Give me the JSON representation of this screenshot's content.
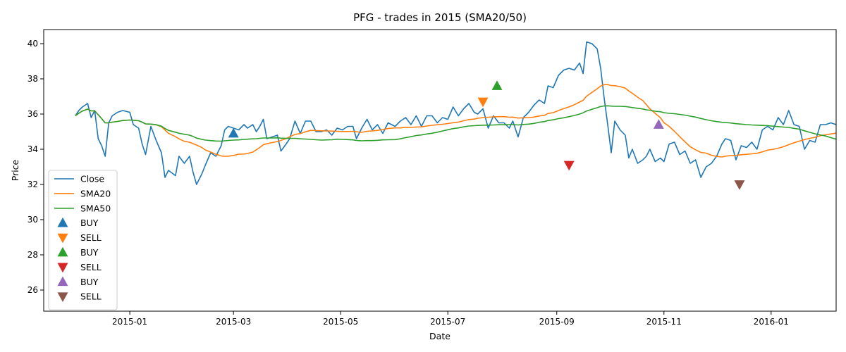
{
  "chart_data": {
    "type": "line",
    "title": "PFG - trades in 2015 (SMA20/50)",
    "xlabel": "Date",
    "ylabel": "Price",
    "xlim": [
      "2014-11-13",
      "2016-02-07"
    ],
    "ylim": [
      24.8,
      40.8
    ],
    "xticks": [
      {
        "date": "2015-01-01",
        "label": "2015-01"
      },
      {
        "date": "2015-03-01",
        "label": "2015-03"
      },
      {
        "date": "2015-05-01",
        "label": "2015-05"
      },
      {
        "date": "2015-07-01",
        "label": "2015-07"
      },
      {
        "date": "2015-09-01",
        "label": "2015-09"
      },
      {
        "date": "2015-11-01",
        "label": "2015-11"
      },
      {
        "date": "2016-01-01",
        "label": "2016-01"
      }
    ],
    "yticks": [
      26,
      28,
      30,
      32,
      34,
      36,
      38,
      40
    ],
    "grid": false,
    "legend_position": "lower-left",
    "series": [
      {
        "name": "Close",
        "color": "#1f77b4",
        "points": [
          [
            "2014-12-01",
            35.9
          ],
          [
            "2014-12-03",
            36.2
          ],
          [
            "2014-12-05",
            36.4
          ],
          [
            "2014-12-08",
            36.6
          ],
          [
            "2014-12-10",
            35.8
          ],
          [
            "2014-12-12",
            36.2
          ],
          [
            "2014-12-14",
            34.6
          ],
          [
            "2014-12-16",
            34.2
          ],
          [
            "2014-12-18",
            33.6
          ],
          [
            "2014-12-20",
            35.5
          ],
          [
            "2014-12-22",
            35.9
          ],
          [
            "2014-12-25",
            36.1
          ],
          [
            "2014-12-28",
            36.2
          ],
          [
            "2015-01-01",
            36.1
          ],
          [
            "2015-01-03",
            35.4
          ],
          [
            "2015-01-06",
            35.2
          ],
          [
            "2015-01-08",
            34.3
          ],
          [
            "2015-01-10",
            33.7
          ],
          [
            "2015-01-13",
            35.3
          ],
          [
            "2015-01-16",
            34.5
          ],
          [
            "2015-01-19",
            33.8
          ],
          [
            "2015-01-21",
            32.4
          ],
          [
            "2015-01-23",
            32.8
          ],
          [
            "2015-01-27",
            32.5
          ],
          [
            "2015-01-29",
            33.6
          ],
          [
            "2015-02-01",
            33.2
          ],
          [
            "2015-02-04",
            33.6
          ],
          [
            "2015-02-06",
            32.7
          ],
          [
            "2015-02-08",
            32.0
          ],
          [
            "2015-02-11",
            32.6
          ],
          [
            "2015-02-13",
            33.1
          ],
          [
            "2015-02-16",
            33.8
          ],
          [
            "2015-02-19",
            33.6
          ],
          [
            "2015-02-22",
            34.2
          ],
          [
            "2015-02-24",
            35.1
          ],
          [
            "2015-02-26",
            35.3
          ],
          [
            "2015-03-01",
            35.2
          ],
          [
            "2015-03-04",
            35.1
          ],
          [
            "2015-03-07",
            35.4
          ],
          [
            "2015-03-09",
            35.2
          ],
          [
            "2015-03-12",
            35.4
          ],
          [
            "2015-03-14",
            35.0
          ],
          [
            "2015-03-16",
            35.3
          ],
          [
            "2015-03-18",
            35.7
          ],
          [
            "2015-03-20",
            34.6
          ],
          [
            "2015-03-23",
            34.7
          ],
          [
            "2015-03-26",
            34.8
          ],
          [
            "2015-03-28",
            33.9
          ],
          [
            "2015-03-31",
            34.3
          ],
          [
            "2015-04-02",
            34.6
          ],
          [
            "2015-04-05",
            35.6
          ],
          [
            "2015-04-08",
            34.9
          ],
          [
            "2015-04-11",
            35.6
          ],
          [
            "2015-04-14",
            35.6
          ],
          [
            "2015-04-17",
            35.0
          ],
          [
            "2015-04-20",
            35.0
          ],
          [
            "2015-04-23",
            35.1
          ],
          [
            "2015-04-26",
            34.8
          ],
          [
            "2015-04-29",
            35.2
          ],
          [
            "2015-05-02",
            35.1
          ],
          [
            "2015-05-05",
            35.3
          ],
          [
            "2015-05-08",
            35.3
          ],
          [
            "2015-05-10",
            34.6
          ],
          [
            "2015-05-13",
            35.2
          ],
          [
            "2015-05-16",
            35.7
          ],
          [
            "2015-05-19",
            35.1
          ],
          [
            "2015-05-22",
            35.4
          ],
          [
            "2015-05-25",
            34.9
          ],
          [
            "2015-05-28",
            35.5
          ],
          [
            "2015-06-01",
            35.3
          ],
          [
            "2015-06-04",
            35.6
          ],
          [
            "2015-06-07",
            35.8
          ],
          [
            "2015-06-10",
            35.4
          ],
          [
            "2015-06-13",
            35.9
          ],
          [
            "2015-06-16",
            35.3
          ],
          [
            "2015-06-19",
            35.9
          ],
          [
            "2015-06-22",
            35.9
          ],
          [
            "2015-06-25",
            35.5
          ],
          [
            "2015-06-28",
            35.8
          ],
          [
            "2015-07-01",
            35.7
          ],
          [
            "2015-07-04",
            36.4
          ],
          [
            "2015-07-07",
            35.9
          ],
          [
            "2015-07-10",
            36.3
          ],
          [
            "2015-07-13",
            36.6
          ],
          [
            "2015-07-16",
            36.1
          ],
          [
            "2015-07-18",
            36.0
          ],
          [
            "2015-07-21",
            36.3
          ],
          [
            "2015-07-24",
            35.2
          ],
          [
            "2015-07-27",
            35.9
          ],
          [
            "2015-07-30",
            35.5
          ],
          [
            "2015-08-02",
            35.5
          ],
          [
            "2015-08-05",
            35.2
          ],
          [
            "2015-08-07",
            35.6
          ],
          [
            "2015-08-10",
            34.7
          ],
          [
            "2015-08-13",
            35.8
          ],
          [
            "2015-08-16",
            36.1
          ],
          [
            "2015-08-19",
            36.5
          ],
          [
            "2015-08-22",
            36.8
          ],
          [
            "2015-08-25",
            36.6
          ],
          [
            "2015-08-27",
            37.6
          ],
          [
            "2015-08-30",
            37.5
          ],
          [
            "2015-09-02",
            38.2
          ],
          [
            "2015-09-05",
            38.5
          ],
          [
            "2015-09-08",
            38.6
          ],
          [
            "2015-09-11",
            38.5
          ],
          [
            "2015-09-14",
            38.9
          ],
          [
            "2015-09-16",
            38.3
          ],
          [
            "2015-09-18",
            40.1
          ],
          [
            "2015-09-21",
            40.0
          ],
          [
            "2015-09-24",
            39.7
          ],
          [
            "2015-09-26",
            38.6
          ],
          [
            "2015-09-28",
            36.9
          ],
          [
            "2015-09-30",
            35.4
          ],
          [
            "2015-10-02",
            33.8
          ],
          [
            "2015-10-04",
            35.6
          ],
          [
            "2015-10-07",
            35.1
          ],
          [
            "2015-10-10",
            34.8
          ],
          [
            "2015-10-12",
            33.5
          ],
          [
            "2015-10-14",
            34.0
          ],
          [
            "2015-10-17",
            33.2
          ],
          [
            "2015-10-20",
            33.4
          ],
          [
            "2015-10-22",
            33.6
          ],
          [
            "2015-10-24",
            34.0
          ],
          [
            "2015-10-27",
            33.3
          ],
          [
            "2015-10-30",
            33.5
          ],
          [
            "2015-11-01",
            33.3
          ],
          [
            "2015-11-04",
            34.3
          ],
          [
            "2015-11-07",
            34.4
          ],
          [
            "2015-11-10",
            33.7
          ],
          [
            "2015-11-13",
            33.9
          ],
          [
            "2015-11-16",
            33.2
          ],
          [
            "2015-11-19",
            33.4
          ],
          [
            "2015-11-22",
            32.4
          ],
          [
            "2015-11-25",
            33.0
          ],
          [
            "2015-11-28",
            33.2
          ],
          [
            "2015-12-01",
            33.6
          ],
          [
            "2015-12-04",
            34.3
          ],
          [
            "2015-12-06",
            34.6
          ],
          [
            "2015-12-09",
            34.5
          ],
          [
            "2015-12-12",
            33.4
          ],
          [
            "2015-12-15",
            34.2
          ],
          [
            "2015-12-18",
            34.1
          ],
          [
            "2015-12-21",
            34.4
          ],
          [
            "2015-12-24",
            34.0
          ],
          [
            "2015-12-27",
            35.1
          ],
          [
            "2015-12-30",
            35.3
          ],
          [
            "2016-01-02",
            35.1
          ],
          [
            "2016-01-05",
            35.8
          ],
          [
            "2016-01-08",
            35.4
          ],
          [
            "2016-01-11",
            36.2
          ],
          [
            "2016-01-14",
            35.4
          ],
          [
            "2016-01-17",
            35.3
          ],
          [
            "2016-01-20",
            34.0
          ],
          [
            "2016-01-23",
            34.5
          ],
          [
            "2016-01-26",
            34.4
          ],
          [
            "2016-01-29",
            35.4
          ],
          [
            "2016-02-01",
            35.4
          ],
          [
            "2016-02-04",
            35.5
          ],
          [
            "2016-02-07",
            35.4
          ],
          [
            "2016-02-10",
            35.8
          ]
        ]
      },
      {
        "name": "SMA20",
        "color": "#ff7f0e",
        "points": []
      },
      {
        "name": "SMA50",
        "color": "#2ca02c",
        "points": []
      }
    ],
    "trades": [
      {
        "label": "BUY",
        "type": "buy",
        "color": "#1f77b4",
        "date": "2015-03-01",
        "price": 34.9
      },
      {
        "label": "SELL",
        "type": "sell",
        "color": "#ff7f0e",
        "date": "2015-07-21",
        "price": 36.7
      },
      {
        "label": "BUY",
        "type": "buy",
        "color": "#2ca02c",
        "date": "2015-07-29",
        "price": 37.6
      },
      {
        "label": "SELL",
        "type": "sell",
        "color": "#d62728",
        "date": "2015-09-08",
        "price": 33.1
      },
      {
        "label": "BUY",
        "type": "buy",
        "color": "#9467bd",
        "date": "2015-10-29",
        "price": 35.4
      },
      {
        "label": "SELL",
        "type": "sell",
        "color": "#8c564b",
        "date": "2015-12-14",
        "price": 32.0
      }
    ]
  }
}
